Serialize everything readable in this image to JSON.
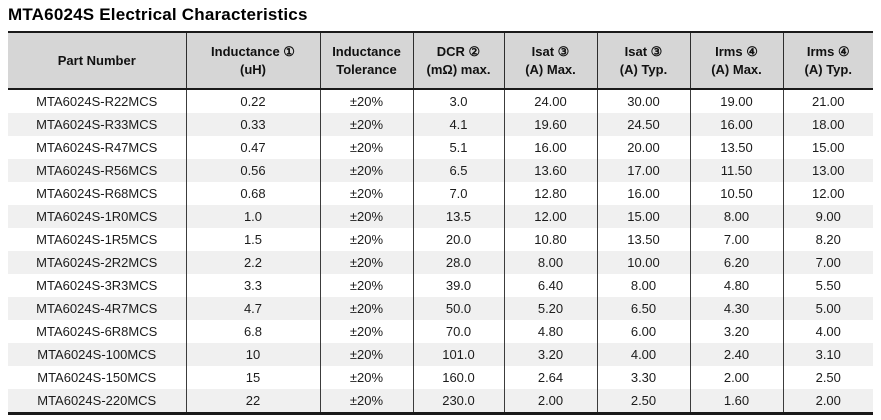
{
  "title": "MTA6024S Electrical Characteristics",
  "table": {
    "column_keys": [
      "part-number",
      "inductance",
      "inductance-tolerance",
      "dcr",
      "isat-max",
      "isat-typ",
      "irms-max",
      "irms-typ"
    ],
    "columns": [
      {
        "line1": "Part Number",
        "line2": ""
      },
      {
        "line1": "Inductance ①",
        "line2": "(uH)"
      },
      {
        "line1": "Inductance",
        "line2": "Tolerance"
      },
      {
        "line1": "DCR ②",
        "line2": "(mΩ) max."
      },
      {
        "line1": "Isat ③",
        "line2": "(A) Max."
      },
      {
        "line1": "Isat ③",
        "line2": "(A) Typ."
      },
      {
        "line1": "Irms ④",
        "line2": "(A) Max."
      },
      {
        "line1": "Irms ④",
        "line2": "(A) Typ."
      }
    ],
    "rows": [
      [
        "MTA6024S-R22MCS",
        "0.22",
        "±20%",
        "3.0",
        "24.00",
        "30.00",
        "19.00",
        "21.00"
      ],
      [
        "MTA6024S-R33MCS",
        "0.33",
        "±20%",
        "4.1",
        "19.60",
        "24.50",
        "16.00",
        "18.00"
      ],
      [
        "MTA6024S-R47MCS",
        "0.47",
        "±20%",
        "5.1",
        "16.00",
        "20.00",
        "13.50",
        "15.00"
      ],
      [
        "MTA6024S-R56MCS",
        "0.56",
        "±20%",
        "6.5",
        "13.60",
        "17.00",
        "11.50",
        "13.00"
      ],
      [
        "MTA6024S-R68MCS",
        "0.68",
        "±20%",
        "7.0",
        "12.80",
        "16.00",
        "10.50",
        "12.00"
      ],
      [
        "MTA6024S-1R0MCS",
        "1.0",
        "±20%",
        "13.5",
        "12.00",
        "15.00",
        "8.00",
        "9.00"
      ],
      [
        "MTA6024S-1R5MCS",
        "1.5",
        "±20%",
        "20.0",
        "10.80",
        "13.50",
        "7.00",
        "8.20"
      ],
      [
        "MTA6024S-2R2MCS",
        "2.2",
        "±20%",
        "28.0",
        "8.00",
        "10.00",
        "6.20",
        "7.00"
      ],
      [
        "MTA6024S-3R3MCS",
        "3.3",
        "±20%",
        "39.0",
        "6.40",
        "8.00",
        "4.80",
        "5.50"
      ],
      [
        "MTA6024S-4R7MCS",
        "4.7",
        "±20%",
        "50.0",
        "5.20",
        "6.50",
        "4.30",
        "5.00"
      ],
      [
        "MTA6024S-6R8MCS",
        "6.8",
        "±20%",
        "70.0",
        "4.80",
        "6.00",
        "3.20",
        "4.00"
      ],
      [
        "MTA6024S-100MCS",
        "10",
        "±20%",
        "101.0",
        "3.20",
        "4.00",
        "2.40",
        "3.10"
      ],
      [
        "MTA6024S-150MCS",
        "15",
        "±20%",
        "160.0",
        "2.64",
        "3.30",
        "2.00",
        "2.50"
      ],
      [
        "MTA6024S-220MCS",
        "22",
        "±20%",
        "230.0",
        "2.00",
        "2.50",
        "1.60",
        "2.00"
      ]
    ],
    "colors": {
      "header_bg": "#d6d6d6",
      "row_alt_bg": "#f0f0f0",
      "rule": "#1a1a1a",
      "text": "#1c1c1c"
    }
  }
}
